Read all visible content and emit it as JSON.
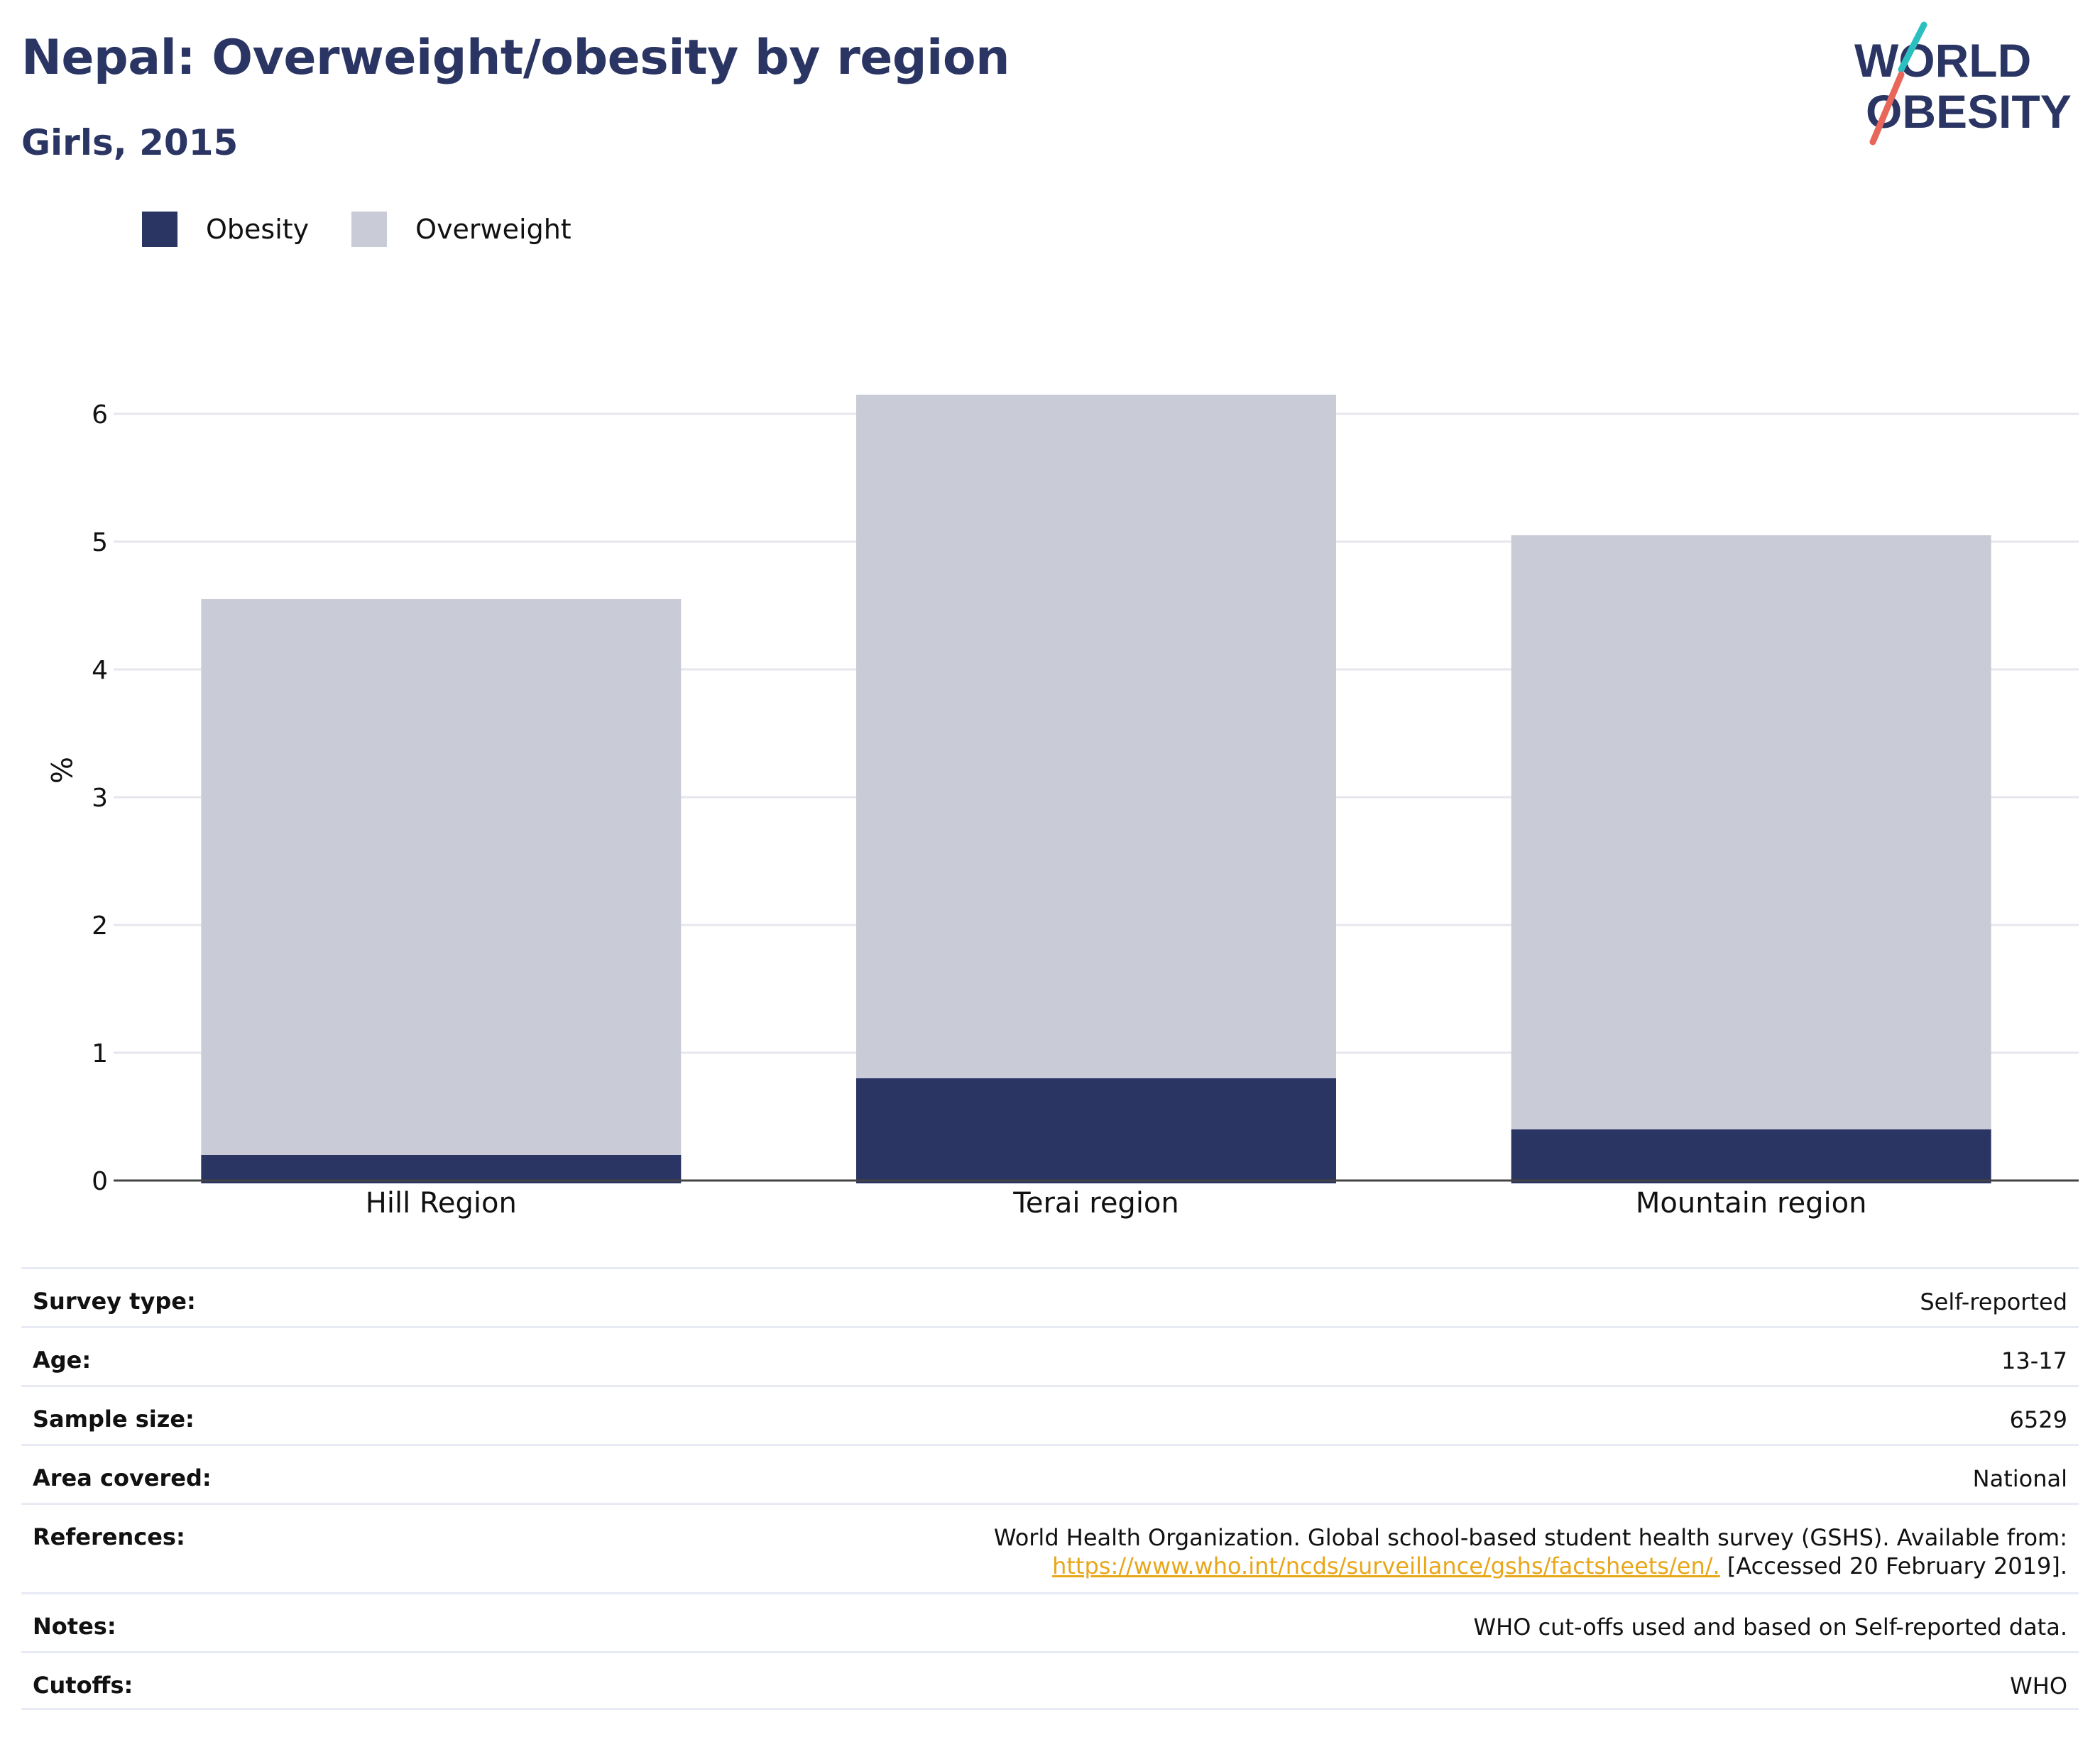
{
  "header": {
    "title": "Nepal: Overweight/obesity by region",
    "subtitle": "Girls, 2015"
  },
  "logo": {
    "line1": "WORLD",
    "line2": "OBESITY",
    "colors": {
      "text": "#2a3563",
      "slash_top": "#2bbfbf",
      "slash_bottom": "#e8665a"
    }
  },
  "legend": [
    {
      "label": "Obesity",
      "color": "#2a3563"
    },
    {
      "label": "Overweight",
      "color": "#c9ccd7"
    }
  ],
  "chart_data": {
    "type": "bar",
    "stacked": true,
    "categories": [
      "Hill Region",
      "Terai region",
      "Mountain region"
    ],
    "series": [
      {
        "name": "Obesity",
        "color": "#2a3563",
        "values": [
          0.2,
          0.8,
          0.4
        ]
      },
      {
        "name": "Overweight",
        "color": "#c9ccd7",
        "values": [
          4.35,
          5.35,
          4.65
        ]
      }
    ],
    "totals": [
      4.55,
      6.15,
      5.05
    ],
    "ylabel": "%",
    "yticks": [
      0,
      1,
      2,
      3,
      4,
      5,
      6
    ],
    "ylim": [
      0,
      6.5
    ],
    "grid": true,
    "legend_position": "top-left"
  },
  "info": {
    "survey_type": {
      "label": "Survey type:",
      "value": "Self-reported"
    },
    "age": {
      "label": "Age:",
      "value": "13-17"
    },
    "sample_size": {
      "label": "Sample size:",
      "value": "6529"
    },
    "area_covered": {
      "label": "Area covered:",
      "value": "National"
    },
    "references": {
      "label": "References:",
      "line1": "World Health Organization. Global school-based student health survey (GSHS). Available from:",
      "link": "https://www.who.int/ncds/surveillance/gshs/factsheets/en/.",
      "accessed": "[Accessed 20 February 2019]."
    },
    "notes": {
      "label": "Notes:",
      "value": "WHO cut-offs used and based on Self-reported data."
    },
    "cutoffs": {
      "label": "Cutoffs:",
      "value": "WHO"
    }
  }
}
